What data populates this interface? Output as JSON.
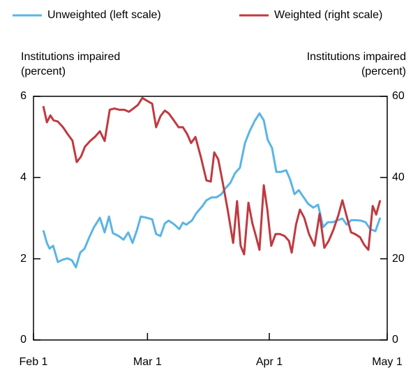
{
  "chart_data": {
    "type": "line",
    "y_label_left": [
      "Institutions impaired",
      "(percent)"
    ],
    "y_label_right": [
      "Institutions impaired",
      "(percent)"
    ],
    "xlim": [
      0,
      90
    ],
    "xticks": [
      {
        "value": 0,
        "label": "Feb 1"
      },
      {
        "value": 29,
        "label": "Mar 1"
      },
      {
        "value": 60,
        "label": "Apr 1"
      },
      {
        "value": 90,
        "label": "May 1"
      }
    ],
    "ylim": [
      0,
      6
    ],
    "yticks": [
      0,
      2,
      4,
      6
    ],
    "y2lim": [
      0,
      60
    ],
    "y2ticks": [
      0,
      20,
      40,
      60
    ],
    "series": [
      {
        "name": "Unweighted (left scale)",
        "color": "#5ab4e5",
        "x": [
          2.5,
          3.4,
          4.1,
          5.0,
          6.2,
          7.5,
          8.7,
          9.8,
          10.8,
          11.9,
          13.0,
          14.2,
          15.4,
          16.9,
          18.1,
          19.2,
          20.2,
          21.7,
          22.9,
          24.1,
          25.2,
          26.3,
          27.3,
          28.8,
          30.2,
          31.2,
          32.3,
          33.4,
          34.4,
          35.9,
          37.1,
          38.0,
          38.9,
          40.3,
          41.5,
          43.0,
          44.0,
          45.3,
          46.5,
          47.8,
          48.8,
          50.1,
          51.3,
          52.5,
          53.8,
          55.0,
          56.3,
          57.5,
          58.6,
          59.6,
          60.7,
          61.8,
          63.0,
          64.3,
          65.3,
          66.4,
          67.5,
          68.7,
          69.9,
          71.2,
          72.4,
          73.7,
          74.9,
          76.2,
          77.4,
          78.6,
          79.7,
          80.8,
          82.0,
          83.3,
          84.5,
          85.7,
          87.0,
          88.2
        ],
        "values": [
          2.7,
          2.39,
          2.25,
          2.32,
          1.92,
          1.98,
          2.01,
          1.96,
          1.79,
          2.15,
          2.25,
          2.53,
          2.78,
          3.01,
          2.65,
          3.04,
          2.63,
          2.56,
          2.47,
          2.65,
          2.39,
          2.7,
          3.04,
          3.01,
          2.97,
          2.61,
          2.56,
          2.87,
          2.94,
          2.84,
          2.73,
          2.89,
          2.84,
          2.94,
          3.13,
          3.3,
          3.44,
          3.51,
          3.51,
          3.59,
          3.73,
          3.87,
          4.11,
          4.24,
          4.85,
          5.14,
          5.4,
          5.58,
          5.41,
          4.93,
          4.73,
          4.14,
          4.14,
          4.18,
          3.95,
          3.59,
          3.69,
          3.52,
          3.35,
          3.26,
          3.33,
          2.78,
          2.9,
          2.9,
          2.95,
          2.99,
          2.84,
          2.95,
          2.95,
          2.94,
          2.9,
          2.73,
          2.68,
          3.01
        ]
      },
      {
        "name": "Weighted (right scale)",
        "color": "#c0393f",
        "axis": "y2",
        "x": [
          2.5,
          3.4,
          4.3,
          5.1,
          6.2,
          7.5,
          8.7,
          9.9,
          11.0,
          12.1,
          13.1,
          14.4,
          15.6,
          16.9,
          18.1,
          19.4,
          20.6,
          21.8,
          23.1,
          24.3,
          25.4,
          26.6,
          27.7,
          28.9,
          30.2,
          31.2,
          32.3,
          33.4,
          34.4,
          35.7,
          36.9,
          38.0,
          39.1,
          40.1,
          41.2,
          42.6,
          44.0,
          45.1,
          46.0,
          47.0,
          48.1,
          49.4,
          50.8,
          51.8,
          52.7,
          53.6,
          54.7,
          55.7,
          56.6,
          57.5,
          58.6,
          59.5,
          60.5,
          61.6,
          62.7,
          63.9,
          65.0,
          65.7,
          66.8,
          67.8,
          68.9,
          70.1,
          71.5,
          72.8,
          74.0,
          75.1,
          76.3,
          77.6,
          78.6,
          79.7,
          80.8,
          81.8,
          83.1,
          84.1,
          85.2,
          86.3,
          87.2,
          88.2
        ],
        "values": [
          57.6,
          53.6,
          55.3,
          54.1,
          53.8,
          52.4,
          50.7,
          49.1,
          43.8,
          45.2,
          47.6,
          49.0,
          50.0,
          51.4,
          49.0,
          56.7,
          57.0,
          56.7,
          56.7,
          56.2,
          57.0,
          57.9,
          59.6,
          58.9,
          58.2,
          52.4,
          55.1,
          56.5,
          55.8,
          54.1,
          52.4,
          52.4,
          50.7,
          48.5,
          50.0,
          45.0,
          39.3,
          39.0,
          46.2,
          44.5,
          39.0,
          32.1,
          23.9,
          34.2,
          23.2,
          21.1,
          33.8,
          28.7,
          25.6,
          22.2,
          38.1,
          32.1,
          23.2,
          26.1,
          26.1,
          25.6,
          24.4,
          21.5,
          28.4,
          32.1,
          30.1,
          26.1,
          23.2,
          31.1,
          22.7,
          24.4,
          27.1,
          30.8,
          34.4,
          30.4,
          26.5,
          26.1,
          25.3,
          23.5,
          22.2,
          33.0,
          30.9,
          34.4
        ]
      }
    ]
  }
}
